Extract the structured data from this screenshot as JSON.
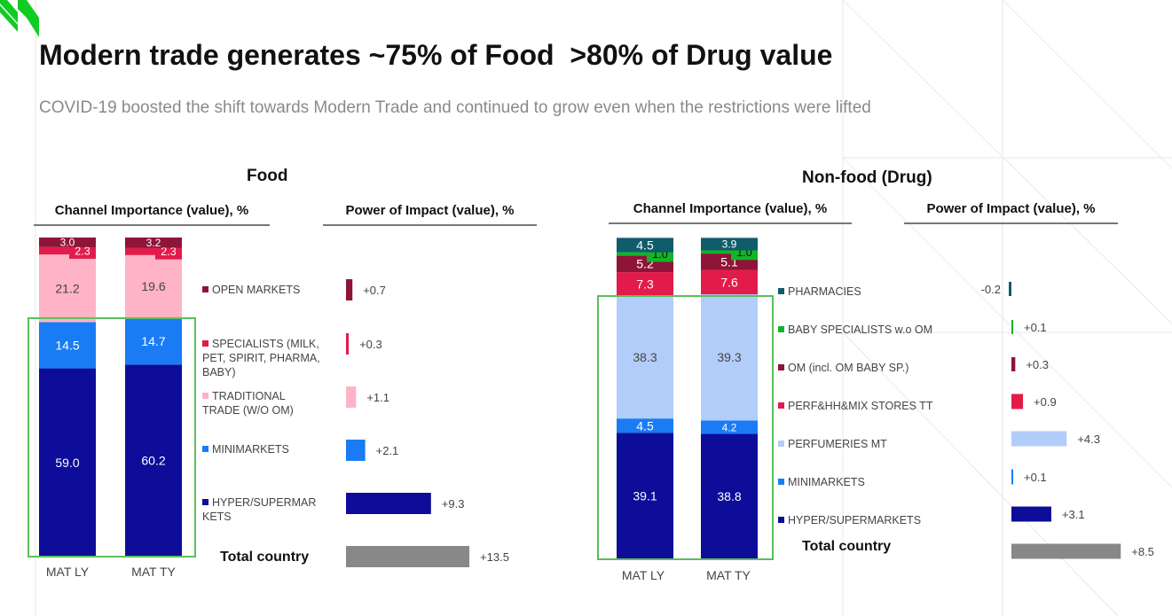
{
  "header": {
    "title": "Modern trade generates ~75% of Food  >80% of Drug value",
    "subtitle": "COVID-19 boosted the shift towards Modern Trade and continued to grow even when the restrictions were lifted"
  },
  "colors": {
    "brand_green": "#11cc22",
    "highlight_box": "#5cbf5c",
    "total_bar": "#888888"
  },
  "chart_data": [
    {
      "type": "bar",
      "stacked": true,
      "title": "Food",
      "subtitle": "Channel Importance (value), %",
      "categories": [
        "MAT LY",
        "MAT TY"
      ],
      "series": [
        {
          "name": "HYPER/SUPERMARKETS",
          "color": "#0d0d99",
          "values": [
            59.0,
            60.2
          ]
        },
        {
          "name": "MINIMARKETS",
          "color": "#1a7cf5",
          "values": [
            14.5,
            14.7
          ]
        },
        {
          "name": "TRADITIONAL TRADE (W/O OM)",
          "color": "#ffb3c6",
          "values": [
            21.2,
            19.6
          ]
        },
        {
          "name": "SPECIALISTS (MILK, PET, SPIRIT, PHARMA, BABY)",
          "color": "#e31b4a",
          "values": [
            2.3,
            2.3
          ]
        },
        {
          "name": "OPEN MARKETS",
          "color": "#8e1538",
          "values": [
            3.0,
            3.2
          ]
        }
      ],
      "highlight": "Modern trade (hyper/supermarkets + minimarkets)"
    },
    {
      "type": "bar",
      "orientation": "horizontal",
      "title": "Food",
      "subtitle": "Power of Impact (value), %",
      "categories": [
        "OPEN MARKETS",
        "SPECIALISTS (MILK, PET, SPIRIT, PHARMA, BABY)",
        "TRADITIONAL TRADE (W/O OM)",
        "MINIMARKETS",
        "HYPER/SUPERMAR KETS",
        "Total country"
      ],
      "values": [
        0.7,
        0.3,
        1.1,
        2.1,
        9.3,
        13.5
      ],
      "labels": [
        "+0.7",
        "+0.3",
        "+1.1",
        "+2.1",
        "+9.3",
        "+13.5"
      ],
      "colors": [
        "#8e1538",
        "#e31b4a",
        "#ffb3c6",
        "#1a7cf5",
        "#0d0d99",
        "#888888"
      ]
    },
    {
      "type": "bar",
      "stacked": true,
      "title": "Non-food (Drug)",
      "subtitle": "Channel Importance (value), %",
      "categories": [
        "MAT LY",
        "MAT TY"
      ],
      "series": [
        {
          "name": "HYPER/SUPERMARKETS",
          "color": "#0d0d99",
          "values": [
            39.1,
            38.8
          ]
        },
        {
          "name": "MINIMARKETS",
          "color": "#1a7cf5",
          "values": [
            4.5,
            4.2
          ]
        },
        {
          "name": "PERFUMERIES MT",
          "color": "#b3cdfa",
          "values": [
            38.3,
            39.3
          ]
        },
        {
          "name": "PERF&HH&MIX STORES TT",
          "color": "#e31b4a",
          "values": [
            7.3,
            7.6
          ]
        },
        {
          "name": "OM (incl. OM BABY SP.)",
          "color": "#8e1538",
          "values": [
            5.2,
            5.1
          ]
        },
        {
          "name": "BABY SPECIALISTS w.o OM",
          "color": "#11b526",
          "values": [
            1.0,
            1.0
          ]
        },
        {
          "name": "PHARMACIES",
          "color": "#0f5c6b",
          "values": [
            4.5,
            3.9
          ]
        }
      ],
      "highlight": "Modern trade (hyper/supermarkets + minimarkets + perfumeries MT)"
    },
    {
      "type": "bar",
      "orientation": "horizontal",
      "title": "Non-food (Drug)",
      "subtitle": "Power of Impact (value), %",
      "categories": [
        "PHARMACIES",
        "BABY SPECIALISTS w.o OM",
        "OM (incl. OM BABY SP.)",
        "PERF&HH&MIX STORES TT",
        "PERFUMERIES MT",
        "MINIMARKETS",
        "HYPER/SUPERMARKETS",
        "Total country"
      ],
      "values": [
        -0.2,
        0.1,
        0.3,
        0.9,
        4.3,
        0.1,
        3.1,
        8.5
      ],
      "labels": [
        "-0.2",
        "+0.1",
        "+0.3",
        "+0.9",
        "+4.3",
        "+0.1",
        "+3.1",
        "+8.5"
      ],
      "colors": [
        "#0f5c6b",
        "#11b526",
        "#8e1538",
        "#e31b4a",
        "#b3cdfa",
        "#1a7cf5",
        "#0d0d99",
        "#888888"
      ]
    }
  ],
  "food": {
    "title": "Food",
    "channel_head": "Channel Importance (value), %",
    "impact_head": "Power of Impact (value), %",
    "legend": [
      "OPEN MARKETS",
      "SPECIALISTS (MILK, PET, SPIRIT, PHARMA, BABY)",
      "TRADITIONAL TRADE (W/O OM)",
      "MINIMARKETS",
      "HYPER/SUPERMAR KETS"
    ],
    "total_label": "Total country"
  },
  "drug": {
    "title": "Non-food (Drug)",
    "channel_head": "Channel Importance (value), %",
    "impact_head": "Power of Impact (value), %",
    "legend": [
      "PHARMACIES",
      "BABY SPECIALISTS w.o OM",
      "OM (incl. OM BABY SP.)",
      "PERF&HH&MIX STORES TT",
      "PERFUMERIES MT",
      "MINIMARKETS",
      "HYPER/SUPERMARKETS"
    ],
    "total_label": "Total country"
  }
}
